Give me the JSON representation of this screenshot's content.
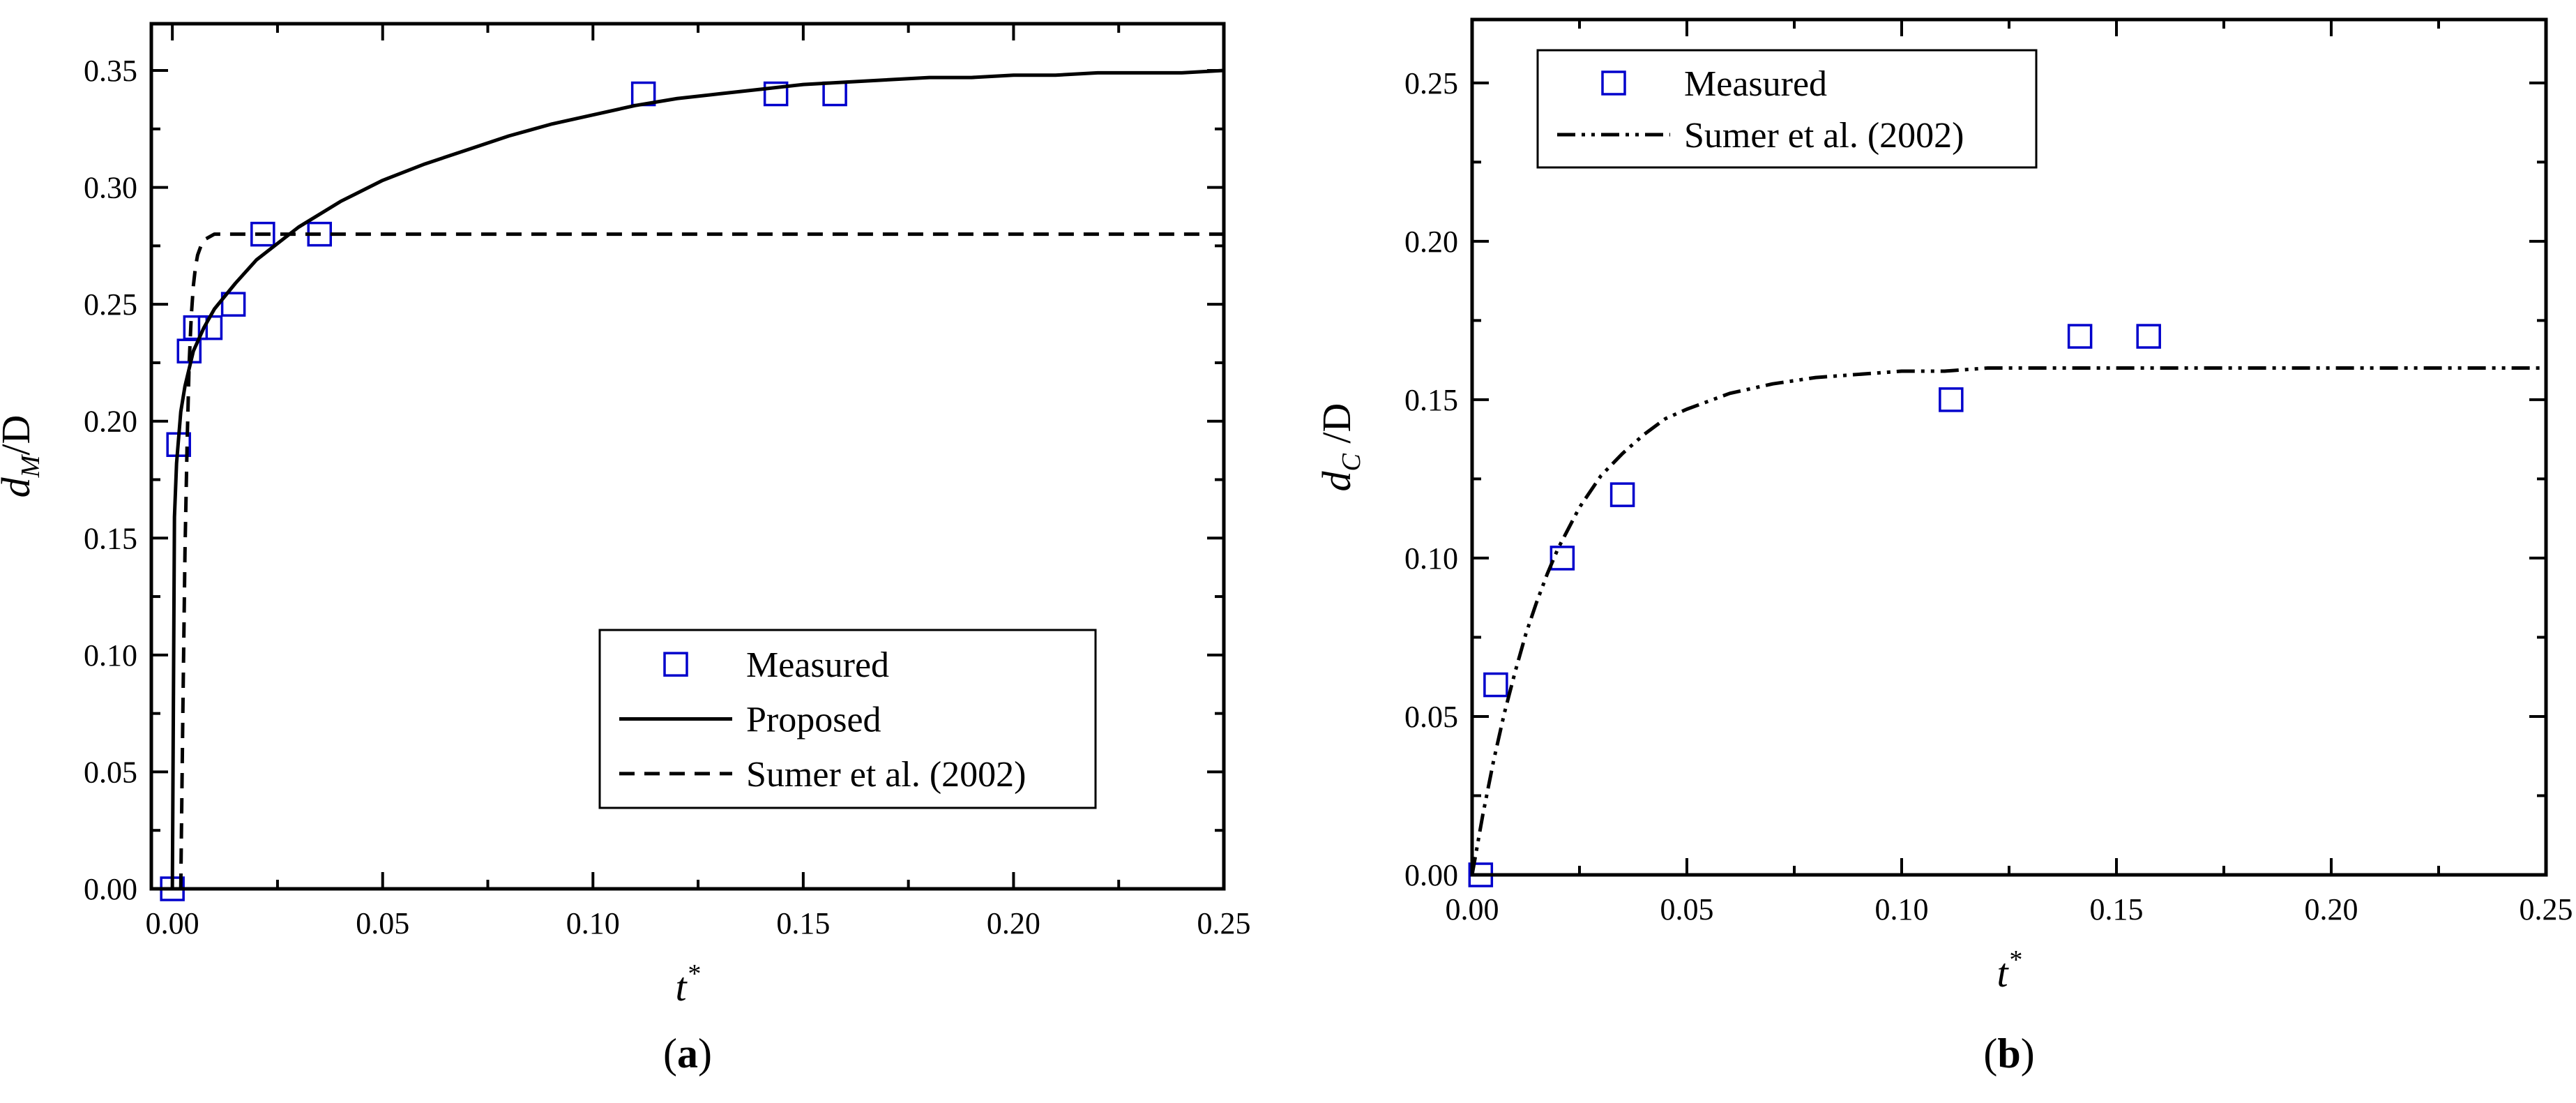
{
  "chart_data": [
    {
      "type": "scatter",
      "panel_label": "(a)",
      "xlabel": {
        "base": "t",
        "sup": "*"
      },
      "ylabel": {
        "base": "d",
        "sub": "M",
        "suffix": "/D"
      },
      "xlim": [
        -0.005,
        0.25
      ],
      "ylim": [
        0,
        0.37
      ],
      "xticks": [
        0.0,
        0.05,
        0.1,
        0.15,
        0.2,
        0.25
      ],
      "xtick_labels": [
        "0.00",
        "0.05",
        "0.10",
        "0.15",
        "0.20",
        "0.25"
      ],
      "yticks": [
        0.0,
        0.05,
        0.1,
        0.15,
        0.2,
        0.25,
        0.3,
        0.35
      ],
      "ytick_labels": [
        "0.00",
        "0.05",
        "0.10",
        "0.15",
        "0.20",
        "0.25",
        "0.30",
        "0.35"
      ],
      "legend_position": "bottom-right",
      "series": [
        {
          "name": "Measured",
          "style": "square-marker",
          "color": "#0000cc",
          "x": [
            0.0,
            0.0015,
            0.004,
            0.0055,
            0.009,
            0.0145,
            0.0215,
            0.035,
            0.112,
            0.1435,
            0.1575
          ],
          "y": [
            0.0,
            0.19,
            0.23,
            0.24,
            0.24,
            0.25,
            0.28,
            0.28,
            0.34,
            0.34,
            0.34
          ]
        },
        {
          "name": "Proposed",
          "style": "solid",
          "color": "#000000",
          "x": [
            0.0,
            0.0005,
            0.001,
            0.002,
            0.003,
            0.005,
            0.0075,
            0.01,
            0.015,
            0.02,
            0.03,
            0.04,
            0.05,
            0.06,
            0.07,
            0.08,
            0.09,
            0.1,
            0.11,
            0.12,
            0.13,
            0.14,
            0.15,
            0.16,
            0.17,
            0.18,
            0.19,
            0.2,
            0.21,
            0.22,
            0.23,
            0.24,
            0.25
          ],
          "y": [
            0.0,
            0.159,
            0.182,
            0.204,
            0.215,
            0.23,
            0.24,
            0.248,
            0.259,
            0.269,
            0.283,
            0.294,
            0.303,
            0.31,
            0.316,
            0.322,
            0.327,
            0.331,
            0.335,
            0.338,
            0.34,
            0.342,
            0.344,
            0.345,
            0.346,
            0.347,
            0.347,
            0.348,
            0.348,
            0.349,
            0.349,
            0.349,
            0.35
          ]
        },
        {
          "name": "Sumer et al. (2002)",
          "style": "dashed",
          "color": "#000000",
          "x": [
            0.002,
            0.0025,
            0.003,
            0.0035,
            0.004,
            0.0045,
            0.005,
            0.0055,
            0.006,
            0.007,
            0.008,
            0.009,
            0.01,
            0.015,
            0.05,
            0.1,
            0.15,
            0.2,
            0.25
          ],
          "y": [
            0.0,
            0.076,
            0.144,
            0.19,
            0.225,
            0.245,
            0.258,
            0.266,
            0.271,
            0.276,
            0.278,
            0.279,
            0.28,
            0.28,
            0.28,
            0.28,
            0.28,
            0.28,
            0.28
          ]
        }
      ]
    },
    {
      "type": "scatter",
      "panel_label": "(b)",
      "xlabel": {
        "base": "t",
        "sup": "*"
      },
      "ylabel": {
        "base": "d",
        "sub": "C",
        "suffix": " /D"
      },
      "xlim": [
        0,
        0.25
      ],
      "ylim": [
        0,
        0.27
      ],
      "xticks": [
        0.0,
        0.05,
        0.1,
        0.15,
        0.2,
        0.25
      ],
      "xtick_labels": [
        "0.00",
        "0.05",
        "0.10",
        "0.15",
        "0.20",
        "0.25"
      ],
      "yticks": [
        0.0,
        0.05,
        0.1,
        0.15,
        0.2,
        0.25
      ],
      "ytick_labels": [
        "0.00",
        "0.05",
        "0.10",
        "0.15",
        "0.20",
        "0.25"
      ],
      "legend_position": "top-left",
      "series": [
        {
          "name": "Measured",
          "style": "square-marker",
          "color": "#0000cc",
          "x": [
            0.002,
            0.0055,
            0.021,
            0.035,
            0.1115,
            0.1415,
            0.1575
          ],
          "y": [
            0.0,
            0.06,
            0.1,
            0.12,
            0.15,
            0.17,
            0.17
          ]
        },
        {
          "name": "Sumer et al. (2002)",
          "style": "dash-dot-dot",
          "color": "#000000",
          "x": [
            0.0,
            0.0025,
            0.005,
            0.0075,
            0.01,
            0.0125,
            0.015,
            0.0175,
            0.02,
            0.025,
            0.03,
            0.035,
            0.04,
            0.045,
            0.05,
            0.06,
            0.07,
            0.08,
            0.09,
            0.1,
            0.11,
            0.12,
            0.13,
            0.14,
            0.15,
            0.175,
            0.2,
            0.225,
            0.25
          ],
          "y": [
            0.0,
            0.019,
            0.036,
            0.051,
            0.064,
            0.076,
            0.086,
            0.095,
            0.103,
            0.116,
            0.126,
            0.133,
            0.139,
            0.144,
            0.147,
            0.152,
            0.155,
            0.157,
            0.158,
            0.159,
            0.159,
            0.16,
            0.16,
            0.16,
            0.16,
            0.16,
            0.16,
            0.16,
            0.16
          ]
        }
      ]
    }
  ]
}
